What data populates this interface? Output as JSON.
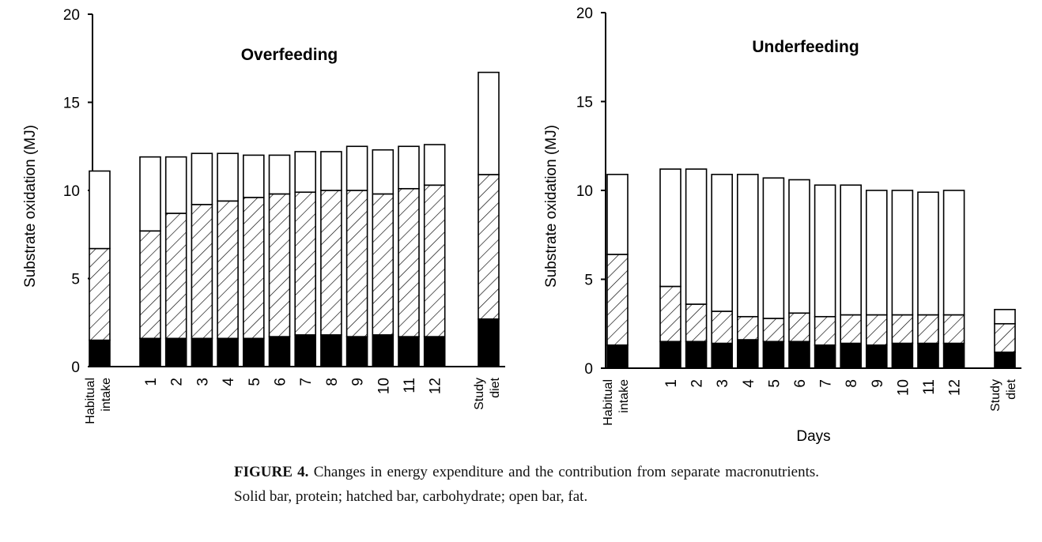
{
  "figure": {
    "caption_label": "FIGURE 4.",
    "caption_text": "Changes in energy expenditure and the contribution from separate macronutrients. Solid bar, protein; hatched bar, carbohydrate; open bar, fat.",
    "colors": {
      "protein": "#000000",
      "carbohydrate": "hatched",
      "fat": "#ffffff",
      "outline": "#000000"
    }
  },
  "chart_data": [
    {
      "type": "bar",
      "stacked": true,
      "title": "Overfeeding",
      "ylabel": "Substrate  oxidation  (MJ)",
      "xlabel": "",
      "ylim": [
        0,
        20
      ],
      "yticks": [
        "0",
        "5",
        "10",
        "15",
        "20"
      ],
      "grid": false,
      "categories": [
        "Habitual intake",
        "1",
        "2",
        "3",
        "4",
        "5",
        "6",
        "7",
        "8",
        "9",
        "10",
        "11",
        "12",
        "Study diet"
      ],
      "series": [
        {
          "name": "protein",
          "values": [
            1.5,
            1.6,
            1.6,
            1.6,
            1.6,
            1.6,
            1.7,
            1.8,
            1.8,
            1.7,
            1.8,
            1.7,
            1.7,
            2.7
          ]
        },
        {
          "name": "carbohydrate",
          "values": [
            5.2,
            6.1,
            7.1,
            7.6,
            7.8,
            8.0,
            8.1,
            8.1,
            8.2,
            8.3,
            8.0,
            8.4,
            8.6,
            8.2
          ]
        },
        {
          "name": "fat",
          "values": [
            4.4,
            4.2,
            3.2,
            2.9,
            2.7,
            2.4,
            2.2,
            2.3,
            2.2,
            2.5,
            2.5,
            2.4,
            2.3,
            5.8
          ]
        }
      ]
    },
    {
      "type": "bar",
      "stacked": true,
      "title": "Underfeeding",
      "ylabel": "Substrate  oxidation  (MJ)",
      "xlabel": "Days",
      "ylim": [
        0,
        20
      ],
      "yticks": [
        "0",
        "5",
        "10",
        "15",
        "20"
      ],
      "grid": false,
      "categories": [
        "Habitual intake",
        "1",
        "2",
        "3",
        "4",
        "5",
        "6",
        "7",
        "8",
        "9",
        "10",
        "11",
        "12",
        "Study diet"
      ],
      "series": [
        {
          "name": "protein",
          "values": [
            1.3,
            1.5,
            1.5,
            1.4,
            1.6,
            1.5,
            1.5,
            1.3,
            1.4,
            1.3,
            1.4,
            1.4,
            1.4,
            0.9
          ]
        },
        {
          "name": "carbohydrate",
          "values": [
            5.1,
            3.1,
            2.1,
            1.8,
            1.3,
            1.3,
            1.6,
            1.6,
            1.6,
            1.7,
            1.6,
            1.6,
            1.6,
            1.6
          ]
        },
        {
          "name": "fat",
          "values": [
            4.5,
            6.6,
            7.6,
            7.7,
            8.0,
            7.9,
            7.5,
            7.4,
            7.3,
            7.0,
            7.0,
            6.9,
            7.0,
            0.8
          ]
        }
      ]
    }
  ]
}
